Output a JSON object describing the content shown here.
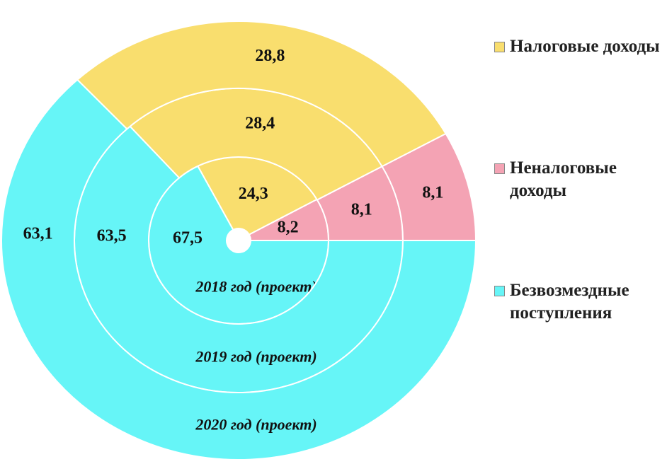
{
  "chart_data": {
    "type": "donut",
    "categories": [
      "Налоговые доходы",
      "Неналоговые доходы",
      "Безвозмездные поступления"
    ],
    "colors": [
      "#f9de6e",
      "#f4a3b4",
      "#66f5f7"
    ],
    "rings": [
      {
        "name": "2018 год (проект)",
        "values": [
          24.3,
          8.2,
          67.5
        ],
        "value_labels": [
          "24,3",
          "8,2",
          "67,5"
        ]
      },
      {
        "name": "2019 год (проект)",
        "values": [
          28.4,
          8.1,
          63.5
        ],
        "value_labels": [
          "28,4",
          "8,1",
          "63,5"
        ]
      },
      {
        "name": "2020 год (проект)",
        "values": [
          28.8,
          8.1,
          63.1
        ],
        "value_labels": [
          "28,8",
          "8,1",
          "63,1"
        ]
      }
    ]
  }
}
